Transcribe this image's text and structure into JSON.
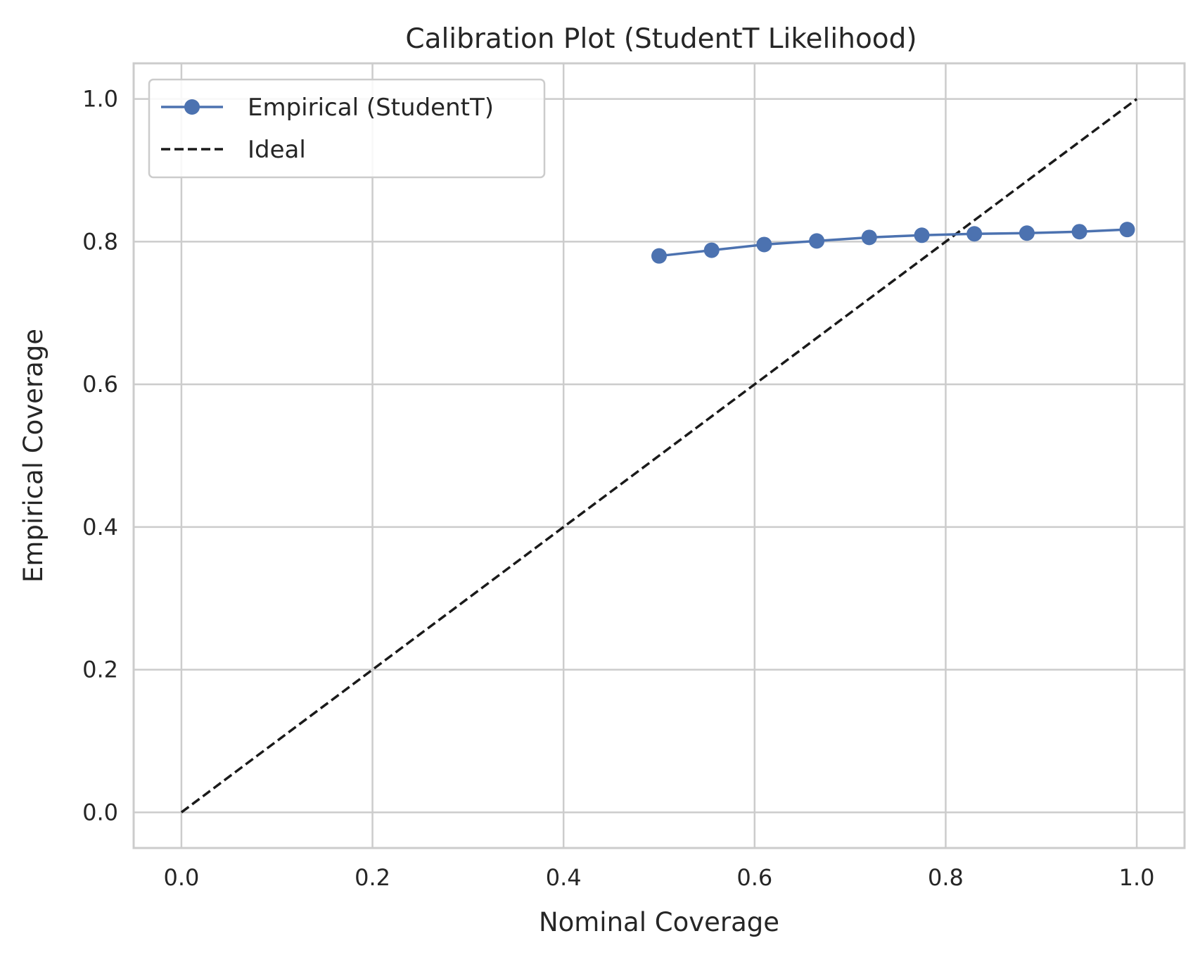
{
  "chart_data": {
    "type": "line",
    "title": "Calibration Plot (StudentT Likelihood)",
    "xlabel": "Nominal Coverage",
    "ylabel": "Empirical Coverage",
    "xlim": [
      -0.05,
      1.05
    ],
    "ylim": [
      -0.05,
      1.05
    ],
    "xticks": [
      0.0,
      0.2,
      0.4,
      0.6,
      0.8,
      1.0
    ],
    "yticks": [
      0.0,
      0.2,
      0.4,
      0.6,
      0.8,
      1.0
    ],
    "xtick_labels": [
      "0.0",
      "0.2",
      "0.4",
      "0.6",
      "0.8",
      "1.0"
    ],
    "ytick_labels": [
      "0.0",
      "0.2",
      "0.4",
      "0.6",
      "0.8",
      "1.0"
    ],
    "grid": true,
    "legend_position": "top-left",
    "series": [
      {
        "name": "Empirical (StudentT)",
        "style": "solid-line-with-circle-markers",
        "color": "#4c72b0",
        "x": [
          0.5,
          0.555,
          0.61,
          0.665,
          0.72,
          0.775,
          0.83,
          0.885,
          0.94,
          0.99
        ],
        "y": [
          0.78,
          0.788,
          0.796,
          0.801,
          0.806,
          0.809,
          0.811,
          0.812,
          0.814,
          0.817
        ]
      },
      {
        "name": "Ideal",
        "style": "dashed-line",
        "color": "#1a1a1a",
        "x": [
          0.0,
          1.0
        ],
        "y": [
          0.0,
          1.0
        ]
      }
    ]
  }
}
